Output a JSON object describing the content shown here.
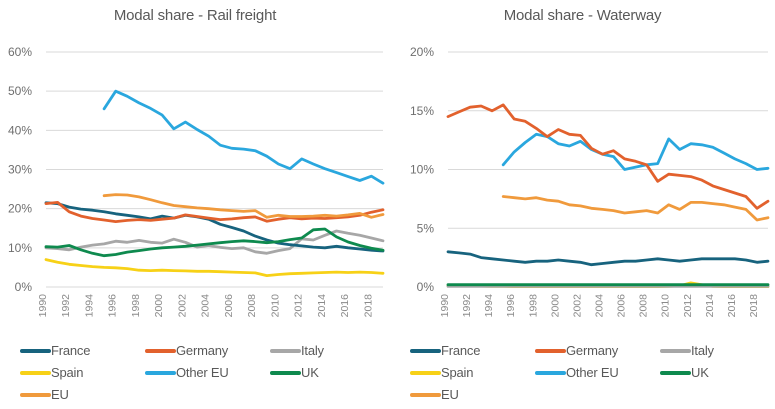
{
  "chart_data": [
    {
      "type": "line",
      "title": "Modal share - Rail freight",
      "xlabel": "",
      "ylabel": "",
      "ylim": [
        0,
        60
      ],
      "grid": true,
      "legend_position": "bottom",
      "y_tick_values": [
        0,
        10,
        20,
        30,
        40,
        50,
        60
      ],
      "y_tick_labels": [
        "0%",
        "10%",
        "20%",
        "30%",
        "40%",
        "50%",
        "60%"
      ],
      "x": [
        1990,
        1991,
        1992,
        1993,
        1994,
        1995,
        1996,
        1997,
        1998,
        1999,
        2000,
        2001,
        2002,
        2003,
        2004,
        2005,
        2006,
        2007,
        2008,
        2009,
        2010,
        2011,
        2012,
        2013,
        2014,
        2015,
        2016,
        2017,
        2018,
        2019
      ],
      "x_tick_labels": [
        "1990",
        "1992",
        "1994",
        "1996",
        "1998",
        "2000",
        "2002",
        "2004",
        "2006",
        "2008",
        "2010",
        "2012",
        "2014",
        "2016",
        "2018"
      ],
      "series": [
        {
          "name": "France",
          "color": "#17637e",
          "values": [
            21.5,
            21.3,
            20.4,
            19.9,
            19.6,
            19.2,
            18.7,
            18.3,
            17.9,
            17.4,
            18.1,
            17.6,
            18.3,
            17.9,
            17.3,
            16.0,
            15.2,
            14.3,
            13.0,
            12.0,
            11.2,
            10.8,
            10.5,
            10.2,
            10.0,
            10.4,
            10.0,
            9.7,
            9.4,
            9.2
          ]
        },
        {
          "name": "Germany",
          "color": "#e2612d",
          "values": [
            21.3,
            21.6,
            19.2,
            18.1,
            17.5,
            17.1,
            16.7,
            17.0,
            17.2,
            17.0,
            17.3,
            17.6,
            18.4,
            18.0,
            17.6,
            17.2,
            17.4,
            17.7,
            17.9,
            16.8,
            17.3,
            17.7,
            17.4,
            17.6,
            17.5,
            17.7,
            17.9,
            18.3,
            19.1,
            19.7
          ]
        },
        {
          "name": "Italy",
          "color": "#a7a7a7",
          "values": [
            10.0,
            9.8,
            9.5,
            10.2,
            10.7,
            11.0,
            11.7,
            11.4,
            11.9,
            11.4,
            11.2,
            12.2,
            11.4,
            10.2,
            10.6,
            10.1,
            9.8,
            10.0,
            9.0,
            8.6,
            9.3,
            9.8,
            12.3,
            12.0,
            13.2,
            14.3,
            13.7,
            13.2,
            12.5,
            11.8
          ]
        },
        {
          "name": "Spain",
          "color": "#f7d117",
          "values": [
            7.0,
            6.3,
            5.8,
            5.5,
            5.2,
            5.0,
            4.9,
            4.7,
            4.3,
            4.2,
            4.3,
            4.2,
            4.1,
            4.0,
            4.0,
            3.9,
            3.8,
            3.7,
            3.6,
            2.9,
            3.2,
            3.4,
            3.5,
            3.6,
            3.7,
            3.8,
            3.7,
            3.8,
            3.7,
            3.5
          ]
        },
        {
          "name": "Other EU",
          "color": "#2aa7de",
          "values": [
            null,
            null,
            null,
            null,
            null,
            45.5,
            50.0,
            48.7,
            47.0,
            45.6,
            43.9,
            40.4,
            42.1,
            40.2,
            38.5,
            36.2,
            35.4,
            35.2,
            34.8,
            33.4,
            31.4,
            30.2,
            32.7,
            31.4,
            30.2,
            29.2,
            28.2,
            27.2,
            28.3,
            26.5
          ]
        },
        {
          "name": "UK",
          "color": "#0e8a4e",
          "values": [
            10.3,
            10.2,
            10.6,
            9.5,
            8.6,
            8.0,
            8.3,
            8.9,
            9.3,
            9.7,
            10.0,
            10.2,
            10.4,
            10.7,
            11.0,
            11.3,
            11.6,
            11.8,
            11.6,
            11.3,
            11.6,
            12.1,
            12.5,
            14.6,
            14.8,
            12.8,
            11.5,
            10.6,
            9.9,
            9.4
          ]
        },
        {
          "name": "EU",
          "color": "#f09a3c",
          "values": [
            null,
            null,
            null,
            null,
            null,
            23.3,
            23.6,
            23.5,
            23.0,
            22.3,
            21.5,
            20.8,
            20.5,
            20.2,
            20.0,
            19.7,
            19.5,
            19.3,
            19.5,
            17.8,
            18.3,
            18.0,
            18.0,
            18.1,
            18.3,
            18.1,
            18.4,
            18.8,
            17.8,
            18.5
          ]
        }
      ]
    },
    {
      "type": "line",
      "title": "Modal share - Waterway",
      "xlabel": "",
      "ylabel": "",
      "ylim": [
        0,
        20
      ],
      "grid": true,
      "legend_position": "bottom",
      "y_tick_values": [
        0,
        5,
        10,
        15,
        20
      ],
      "y_tick_labels": [
        "0%",
        "5%",
        "10%",
        "15%",
        "20%"
      ],
      "x": [
        1990,
        1991,
        1992,
        1993,
        1994,
        1995,
        1996,
        1997,
        1998,
        1999,
        2000,
        2001,
        2002,
        2003,
        2004,
        2005,
        2006,
        2007,
        2008,
        2009,
        2010,
        2011,
        2012,
        2013,
        2014,
        2015,
        2016,
        2017,
        2018,
        2019
      ],
      "x_tick_labels": [
        "1990",
        "1992",
        "1994",
        "1996",
        "1998",
        "2000",
        "2002",
        "2004",
        "2006",
        "2008",
        "2010",
        "2012",
        "2014",
        "2016",
        "2018"
      ],
      "series": [
        {
          "name": "France",
          "color": "#17637e",
          "values": [
            3.0,
            2.9,
            2.8,
            2.5,
            2.4,
            2.3,
            2.2,
            2.1,
            2.2,
            2.2,
            2.3,
            2.2,
            2.1,
            1.9,
            2.0,
            2.1,
            2.2,
            2.2,
            2.3,
            2.4,
            2.3,
            2.2,
            2.3,
            2.4,
            2.4,
            2.4,
            2.4,
            2.3,
            2.1,
            2.2
          ]
        },
        {
          "name": "Germany",
          "color": "#e2612d",
          "values": [
            14.5,
            14.9,
            15.3,
            15.4,
            15.0,
            15.5,
            14.3,
            14.1,
            13.5,
            12.8,
            13.4,
            13.0,
            12.9,
            11.8,
            11.3,
            11.6,
            10.9,
            10.7,
            10.4,
            9.0,
            9.6,
            9.5,
            9.4,
            9.1,
            8.6,
            8.3,
            8.0,
            7.7,
            6.7,
            7.3
          ]
        },
        {
          "name": "Italy",
          "color": "#a7a7a7",
          "values": [
            0.05,
            0.05,
            0.05,
            0.05,
            0.05,
            0.05,
            0.05,
            0.05,
            0.05,
            0.05,
            0.05,
            0.05,
            0.05,
            0.05,
            0.05,
            0.05,
            0.05,
            0.05,
            0.05,
            0.05,
            0.05,
            0.05,
            0.05,
            0.05,
            0.05,
            0.05,
            0.05,
            0.05,
            0.05,
            0.05
          ]
        },
        {
          "name": "Spain",
          "color": "#f7d117",
          "values": [
            0.12,
            0.12,
            0.1,
            0.08,
            0.06,
            0.05,
            0.03,
            0.03,
            0.03,
            0.03,
            0.03,
            0.03,
            0.03,
            0.03,
            0.03,
            0.03,
            0.03,
            0.03,
            0.03,
            0.03,
            0.05,
            0.1,
            0.35,
            0.2,
            0.05,
            0.03,
            0.03,
            0.03,
            0.03,
            0.03
          ]
        },
        {
          "name": "Other EU",
          "color": "#2aa7de",
          "values": [
            null,
            null,
            null,
            null,
            null,
            10.4,
            11.5,
            12.3,
            13.0,
            12.8,
            12.2,
            12.0,
            12.4,
            11.7,
            11.3,
            11.1,
            10.0,
            10.2,
            10.4,
            10.5,
            12.6,
            11.7,
            12.2,
            12.1,
            11.9,
            11.4,
            10.9,
            10.5,
            10.0,
            10.1
          ]
        },
        {
          "name": "UK",
          "color": "#0e8a4e",
          "values": [
            0.2,
            0.2,
            0.2,
            0.2,
            0.2,
            0.2,
            0.2,
            0.2,
            0.2,
            0.2,
            0.2,
            0.2,
            0.2,
            0.2,
            0.2,
            0.2,
            0.2,
            0.2,
            0.2,
            0.2,
            0.2,
            0.2,
            0.2,
            0.2,
            0.2,
            0.2,
            0.2,
            0.2,
            0.2,
            0.2
          ]
        },
        {
          "name": "EU",
          "color": "#f09a3c",
          "values": [
            null,
            null,
            null,
            null,
            null,
            7.7,
            7.6,
            7.5,
            7.6,
            7.4,
            7.3,
            7.0,
            6.9,
            6.7,
            6.6,
            6.5,
            6.3,
            6.4,
            6.5,
            6.3,
            7.0,
            6.6,
            7.2,
            7.2,
            7.1,
            7.0,
            6.8,
            6.6,
            5.7,
            5.9
          ]
        }
      ]
    }
  ],
  "style": {
    "grid_color": "#d9d9d9",
    "title_color": "#595959",
    "tick_label_color": "#8a8a8a",
    "legend_text_color": "#595959",
    "background": "#ffffff"
  }
}
